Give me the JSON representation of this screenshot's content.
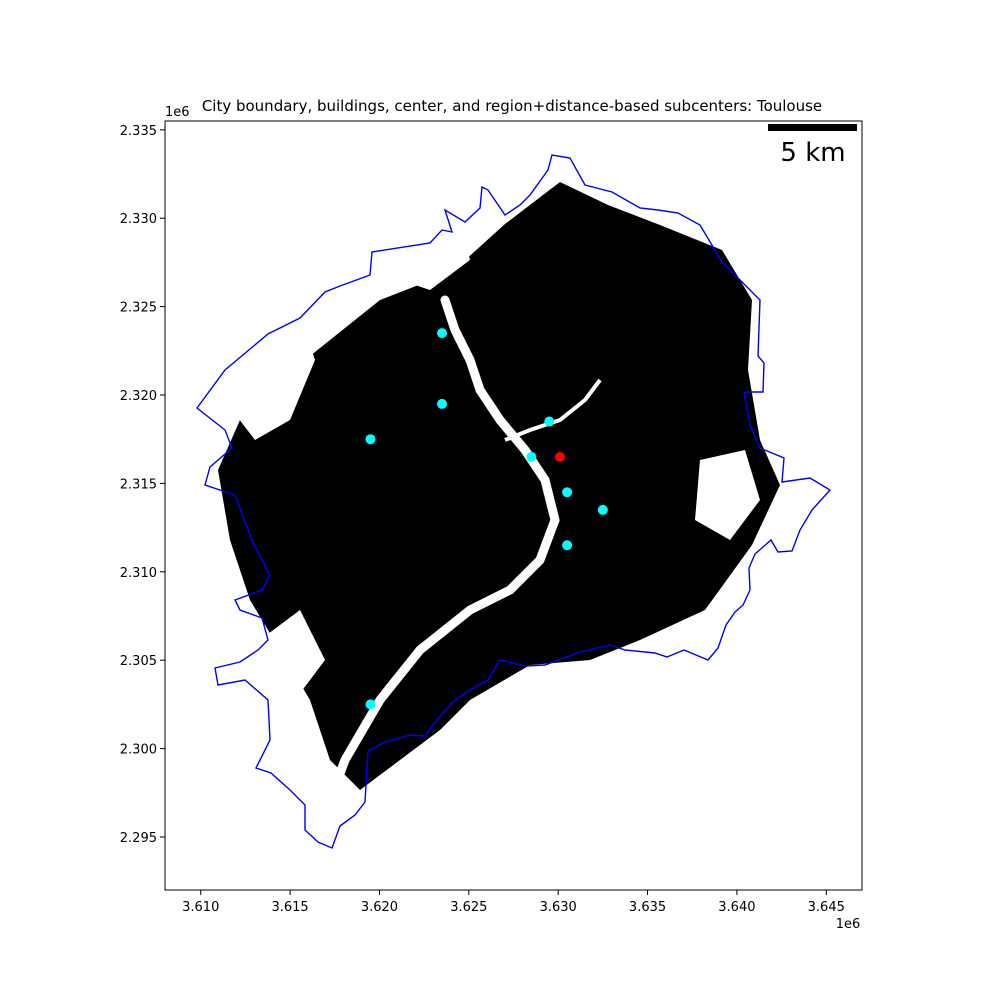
{
  "title": "City boundary, buildings, center, and region+distance-based subcenters: Toulouse",
  "scalebar": {
    "label": "5 km"
  },
  "x_axis": {
    "ticks": [
      "3.610",
      "3.615",
      "3.620",
      "3.625",
      "3.630",
      "3.635",
      "3.640",
      "3.645"
    ],
    "offset": "1e6"
  },
  "y_axis": {
    "ticks": [
      "2.295",
      "2.300",
      "2.305",
      "2.310",
      "2.315",
      "2.320",
      "2.325",
      "2.330",
      "2.335"
    ],
    "offset": "1e6"
  },
  "colors": {
    "boundary": "#0000ff",
    "buildings": "#000000",
    "center": "#ff0000",
    "subcenter": "#00ffff"
  },
  "chart_data": {
    "type": "scatter",
    "xlim": [
      3608000,
      3647000
    ],
    "ylim": [
      2292000,
      2335500
    ],
    "center": [
      3630100,
      2316500
    ],
    "subcenters": [
      [
        3623500,
        2323500
      ],
      [
        3623500,
        2319500
      ],
      [
        3619500,
        2317500
      ],
      [
        3629500,
        2318500
      ],
      [
        3628500,
        2316500
      ],
      [
        3630500,
        2314500
      ],
      [
        3632500,
        2313500
      ],
      [
        3630500,
        2311500
      ],
      [
        3619500,
        2302500
      ]
    ]
  }
}
